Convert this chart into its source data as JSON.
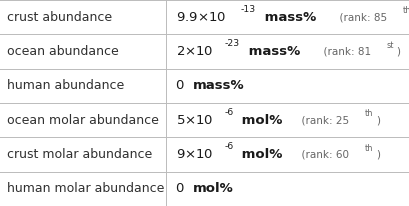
{
  "background_color": "#ffffff",
  "grid_color": "#bbbbbb",
  "label_color": "#303030",
  "value_color": "#1a1a1a",
  "rank_color": "#666666",
  "label_fontsize": 9.0,
  "value_fontsize": 9.5,
  "rank_fontsize": 7.5,
  "col_split": 0.405,
  "rows_data": [
    {
      "label": "crust abundance",
      "coeff": "9.9",
      "exp": "-13",
      "unit": "mass%",
      "rank": "85",
      "rank_suffix": "th"
    },
    {
      "label": "ocean abundance",
      "coeff": "2",
      "exp": "-23",
      "unit": "mass%",
      "rank": "81",
      "rank_suffix": "st"
    },
    {
      "label": "human abundance",
      "coeff": null,
      "exp": null,
      "unit": "mass%",
      "rank": null,
      "rank_suffix": null
    },
    {
      "label": "ocean molar abundance",
      "coeff": "5",
      "exp": "-6",
      "unit": "mol%",
      "rank": "25",
      "rank_suffix": "th"
    },
    {
      "label": "crust molar abundance",
      "coeff": "9",
      "exp": "-6",
      "unit": "mol%",
      "rank": "60",
      "rank_suffix": "th"
    },
    {
      "label": "human molar abundance",
      "coeff": null,
      "exp": null,
      "unit": "mol%",
      "rank": null,
      "rank_suffix": null
    }
  ]
}
